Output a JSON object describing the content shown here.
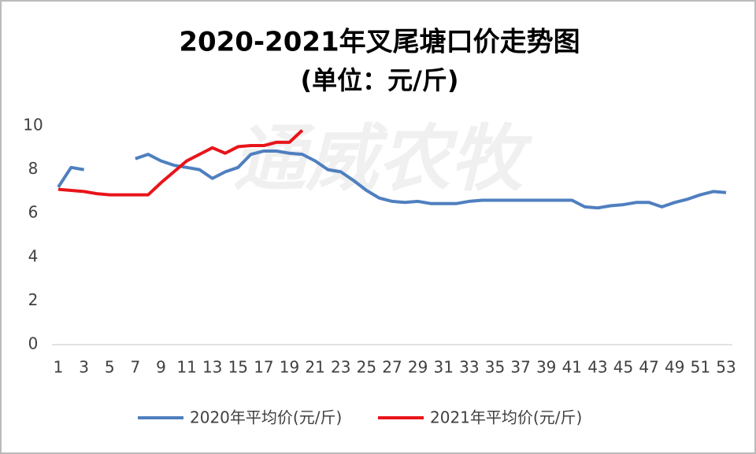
{
  "chart_data": {
    "type": "line",
    "title": "2020-2021年叉尾塘口价走势图",
    "subtitle": "(单位：元/斤)",
    "watermark": "通威农牧",
    "categories": [
      "1",
      null,
      "3",
      null,
      "5",
      null,
      "7",
      null,
      "9",
      null,
      "11",
      null,
      "13",
      null,
      "15",
      null,
      "17",
      null,
      "19",
      null,
      "21",
      null,
      "23",
      null,
      "25",
      null,
      "27",
      null,
      "29",
      null,
      "31",
      null,
      "33",
      null,
      "35",
      null,
      "37",
      null,
      "39",
      null,
      "41",
      null,
      "43",
      null,
      "45",
      null,
      "47",
      null,
      "49",
      null,
      "51",
      null,
      "53"
    ],
    "series": [
      {
        "name": "2020年平均价(元/斤)",
        "color": "#4f7fbf",
        "values": [
          7.2,
          8.1,
          8.0,
          null,
          null,
          null,
          8.5,
          8.7,
          8.4,
          8.2,
          8.1,
          8.0,
          7.6,
          7.9,
          8.1,
          8.7,
          8.85,
          8.85,
          8.75,
          8.7,
          8.4,
          8.0,
          7.9,
          7.5,
          7.05,
          6.7,
          6.55,
          6.5,
          6.55,
          6.45,
          6.45,
          6.45,
          6.55,
          6.6,
          6.6,
          6.6,
          6.6,
          6.6,
          6.6,
          6.6,
          6.6,
          6.3,
          6.25,
          6.35,
          6.4,
          6.5,
          6.5,
          6.3,
          6.5,
          6.65,
          6.85,
          7.0,
          6.95
        ]
      },
      {
        "name": "2021年平均价(元/斤)",
        "color": "#e8141b",
        "values": [
          7.1,
          7.05,
          7.0,
          6.9,
          6.85,
          6.85,
          6.85,
          6.85,
          7.4,
          7.9,
          8.4,
          8.7,
          9.0,
          8.75,
          9.05,
          9.1,
          9.1,
          9.25,
          9.25,
          9.8,
          null,
          null,
          null,
          null,
          null,
          null,
          null,
          null,
          null,
          null,
          null,
          null,
          null,
          null,
          null,
          null,
          null,
          null,
          null,
          null,
          null,
          null,
          null,
          null,
          null,
          null,
          null,
          null,
          null,
          null,
          null,
          null,
          null
        ]
      }
    ],
    "ylim": [
      0,
      10
    ],
    "yticks": [
      0,
      2,
      4,
      6,
      8,
      10
    ],
    "grid": false,
    "legend": "bottom"
  }
}
